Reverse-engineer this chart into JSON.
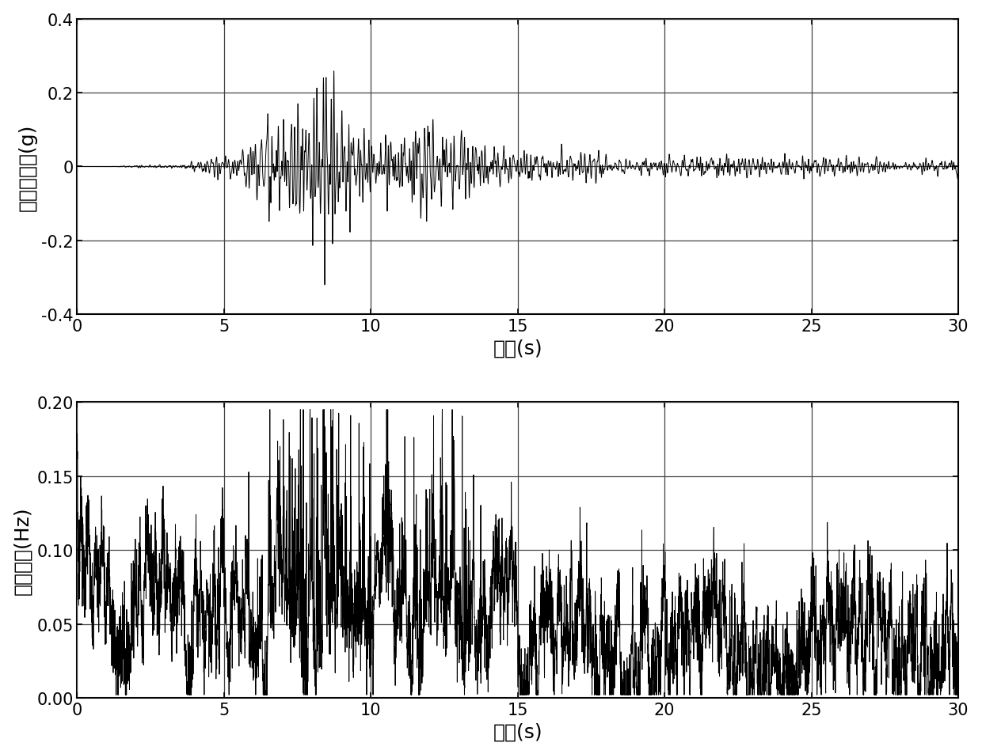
{
  "fig_width": 12.4,
  "fig_height": 9.54,
  "dpi": 100,
  "background_color": "#ffffff",
  "top_plot": {
    "ylabel": "加速度幅值(g)",
    "xlabel": "时间(s)",
    "xlim": [
      0,
      30
    ],
    "ylim": [
      -0.4,
      0.4
    ],
    "yticks": [
      -0.4,
      -0.2,
      0,
      0.2,
      0.4
    ],
    "xticks": [
      0,
      5,
      10,
      15,
      20,
      25,
      30
    ],
    "line_color": "#000000",
    "line_width": 0.7,
    "grid_color": "#444444",
    "grid_linewidth": 0.9
  },
  "bottom_plot": {
    "ylabel": "瞬时频率(Hz)",
    "xlabel": "时间(s)",
    "xlim": [
      0,
      30
    ],
    "ylim": [
      0,
      0.2
    ],
    "yticks": [
      0,
      0.05,
      0.1,
      0.15,
      0.2
    ],
    "xticks": [
      0,
      5,
      10,
      15,
      20,
      25,
      30
    ],
    "line_color": "#000000",
    "line_width": 0.7,
    "grid_color": "#444444",
    "grid_linewidth": 0.9
  },
  "font_size_label": 18,
  "font_size_tick": 15,
  "seed": 12345
}
